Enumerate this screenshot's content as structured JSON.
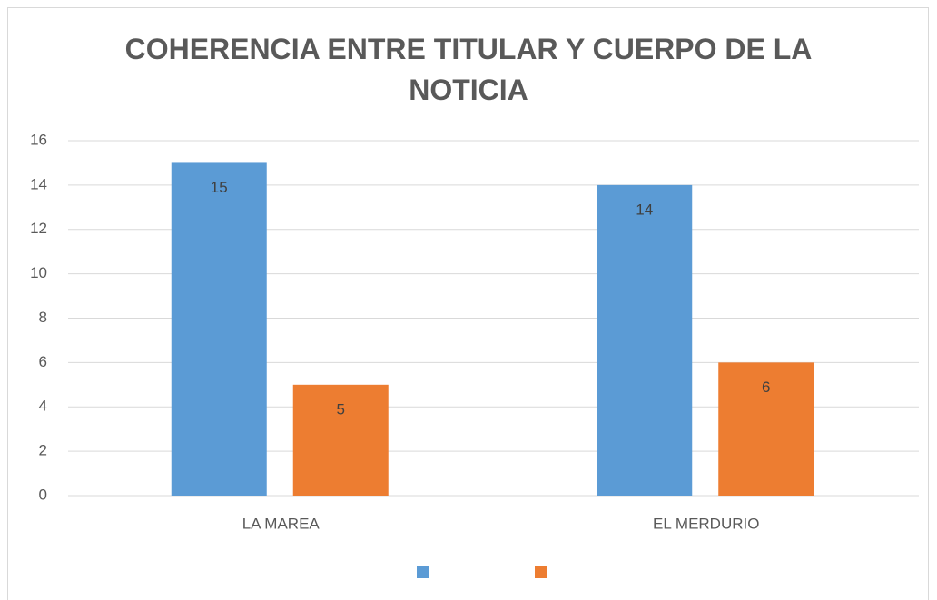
{
  "chart_data": {
    "type": "bar",
    "title": "COHERENCIA ENTRE TITULAR Y CUERPO DE LA NOTICIA",
    "categories": [
      "LA MAREA",
      "EL MERDURIO"
    ],
    "series": [
      {
        "color": "#5b9bd5",
        "values": [
          15,
          14
        ]
      },
      {
        "color": "#ed7d31",
        "values": [
          5,
          6
        ]
      }
    ],
    "ylim": [
      0,
      16
    ],
    "yticks": [
      0,
      2,
      4,
      6,
      8,
      10,
      12,
      14,
      16
    ],
    "grid": true,
    "legend": "bottom"
  }
}
